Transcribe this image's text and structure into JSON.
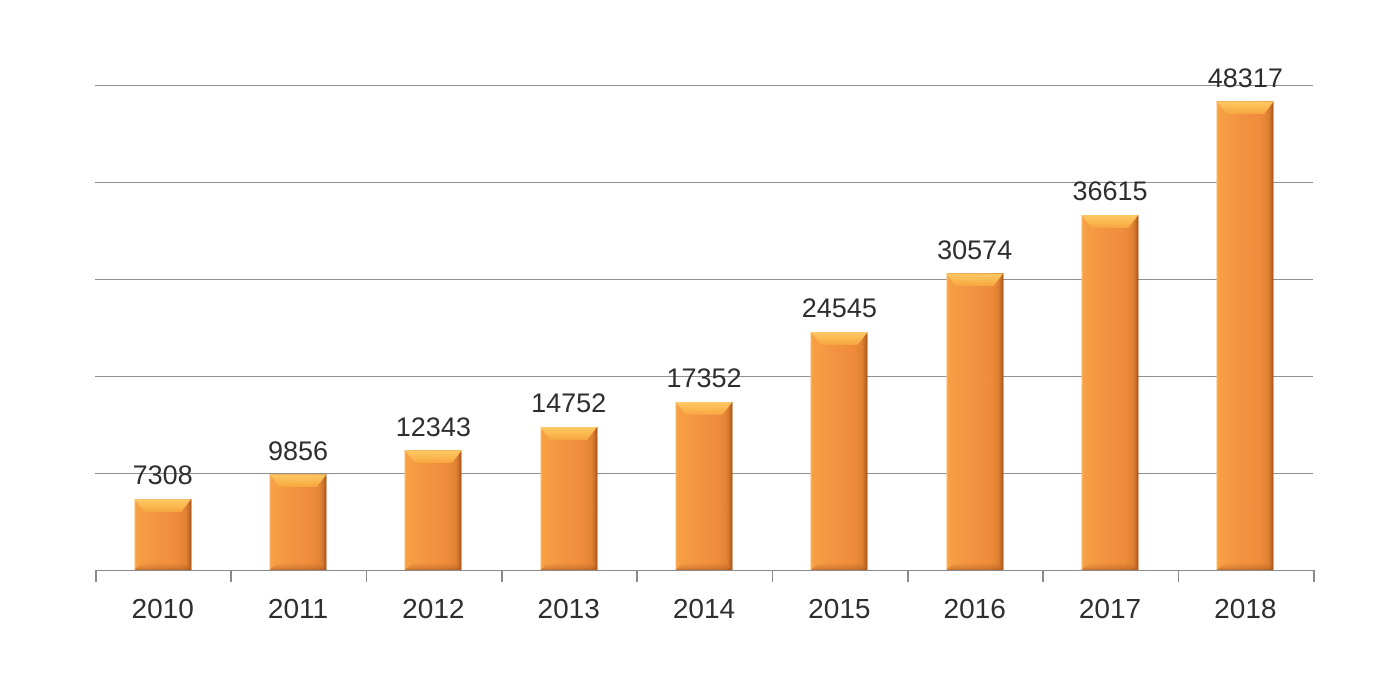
{
  "chart_data": {
    "type": "bar",
    "title": "",
    "xlabel": "",
    "ylabel": "",
    "categories": [
      "2010",
      "2011",
      "2012",
      "2013",
      "2014",
      "2015",
      "2016",
      "2017",
      "2018"
    ],
    "values": [
      7308,
      9856,
      12343,
      14752,
      17352,
      24545,
      30574,
      36615,
      48317
    ],
    "data_labels": [
      "7308",
      "9856",
      "12343",
      "14752",
      "17352",
      "24545",
      "30574",
      "36615",
      "48317"
    ],
    "ylim": [
      0,
      50000
    ],
    "gridline_interval": 10000,
    "grid": true,
    "legend": "none",
    "y_tick_labels_visible": false,
    "colors": {
      "bar_fill": "#F19140",
      "bar_top_highlight": "#FCC35C",
      "bar_edge_dark": "#C9712A",
      "gridline": "#909090",
      "axis": "#8A8A8A",
      "text": "#2E2E2E",
      "background": "#FFFFFF"
    }
  }
}
